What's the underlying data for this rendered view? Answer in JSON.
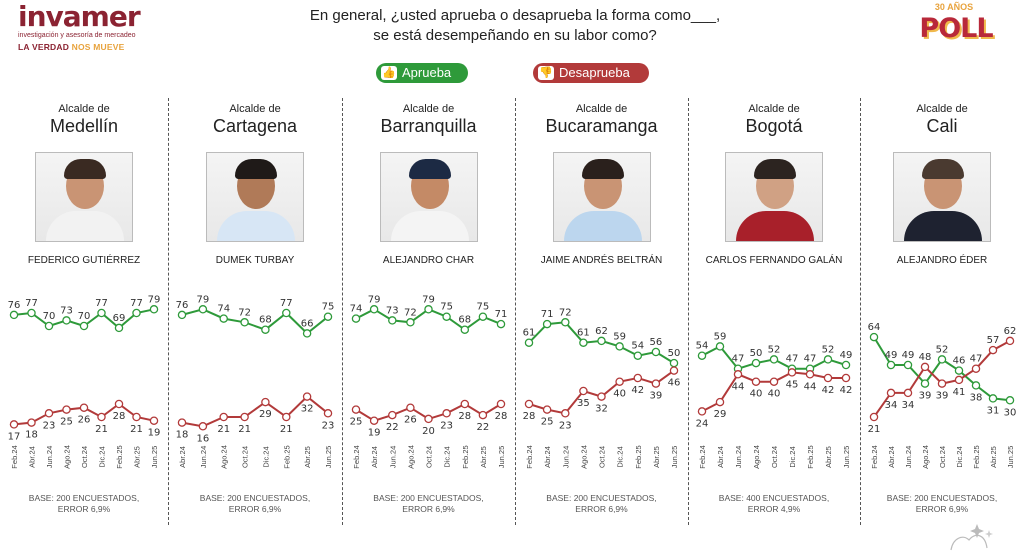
{
  "header": {
    "brand_name": "invamer",
    "brand_sub": "investigación y asesoría de mercadeo",
    "slogan_main": "LA VERDAD ",
    "slogan_accent": "NOS MUEVE",
    "question_line1": "En general, ¿usted aprueba o desaprueba la forma como___,",
    "question_line2": "se está desempeñando en su labor como?",
    "poll_anniversary": "30 AÑOS",
    "poll_word": "POLL"
  },
  "legend": {
    "approve": "Aprueba",
    "disapprove": "Desaprueba",
    "approve_color": "#2e9a3a",
    "disapprove_color": "#b23a3a"
  },
  "panels": [
    {
      "role": "Alcalde de",
      "city": "Medellín",
      "person": "FEDERICO GUTIÉRREZ",
      "base1": "BASE: 200 ENCUESTADOS,",
      "base2": "ERROR 6,9%"
    },
    {
      "role": "Alcalde de",
      "city": "Cartagena",
      "person": "DUMEK TURBAY",
      "base1": "BASE: 200 ENCUESTADOS,",
      "base2": "ERROR 6,9%"
    },
    {
      "role": "Alcalde de",
      "city": "Barranquilla",
      "person": "ALEJANDRO CHAR",
      "base1": "BASE: 200 ENCUESTADOS,",
      "base2": "ERROR 6,9%"
    },
    {
      "role": "Alcalde de",
      "city": "Bucaramanga",
      "person": "JAIME ANDRÉS BELTRÁN",
      "base1": "BASE: 200 ENCUESTADOS,",
      "base2": "ERROR 6,9%"
    },
    {
      "role": "Alcalde de",
      "city": "Bogotá",
      "person": "CARLOS FERNANDO GALÁN",
      "base1": "BASE: 400 ENCUESTADOS,",
      "base2": "ERROR 4,9%"
    },
    {
      "role": "Alcalde de",
      "city": "Cali",
      "person": "ALEJANDRO ÉDER",
      "base1": "BASE: 200 ENCUESTADOS,",
      "base2": "ERROR 6,9%"
    }
  ],
  "chart_data": [
    {
      "type": "line",
      "city": "Medellín",
      "x": [
        "Feb.24",
        "Abr.24",
        "Jun.24",
        "Ago.24",
        "Oct.24",
        "Dic.24",
        "Feb.25",
        "Abr.25",
        "Jun.25"
      ],
      "series": [
        {
          "name": "Aprueba",
          "values": [
            76,
            77,
            70,
            73,
            70,
            77,
            69,
            77,
            79
          ]
        },
        {
          "name": "Desaprueba",
          "values": [
            17,
            18,
            23,
            25,
            26,
            21,
            28,
            21,
            19
          ]
        }
      ]
    },
    {
      "type": "line",
      "city": "Cartagena",
      "x": [
        "Abr.24",
        "Jun.24",
        "Ago.24",
        "Oct.24",
        "Dic.24",
        "Feb.25",
        "Abr.25",
        "Jun.25"
      ],
      "series": [
        {
          "name": "Aprueba",
          "values": [
            76,
            79,
            74,
            72,
            68,
            77,
            66,
            75
          ]
        },
        {
          "name": "Desaprueba",
          "values": [
            18,
            16,
            21,
            21,
            29,
            21,
            32,
            23
          ]
        }
      ]
    },
    {
      "type": "line",
      "city": "Barranquilla",
      "x": [
        "Feb.24",
        "Abr.24",
        "Jun.24",
        "Ago.24",
        "Oct.24",
        "Dic.24",
        "Feb.25",
        "Abr.25",
        "Jun.25"
      ],
      "series": [
        {
          "name": "Aprueba",
          "values": [
            74,
            79,
            73,
            72,
            79,
            75,
            68,
            75,
            71
          ]
        },
        {
          "name": "Desaprueba",
          "values": [
            25,
            19,
            22,
            26,
            20,
            23,
            28,
            22,
            28
          ]
        }
      ]
    },
    {
      "type": "line",
      "city": "Bucaramanga",
      "x": [
        "Feb.24",
        "Abr.24",
        "Jun.24",
        "Ago.24",
        "Oct.24",
        "Dic.24",
        "Feb.25",
        "Abr.25",
        "Jun.25"
      ],
      "series": [
        {
          "name": "Aprueba",
          "values": [
            61,
            71,
            72,
            61,
            62,
            59,
            54,
            56,
            50
          ]
        },
        {
          "name": "Desaprueba",
          "values": [
            28,
            25,
            23,
            35,
            32,
            40,
            42,
            39,
            46
          ]
        }
      ]
    },
    {
      "type": "line",
      "city": "Bogotá",
      "x": [
        "Feb.24",
        "Abr.24",
        "Jun.24",
        "Ago.24",
        "Oct.24",
        "Dic.24",
        "Feb.25",
        "Abr.25",
        "Jun.25"
      ],
      "series": [
        {
          "name": "Aprueba",
          "values": [
            54,
            59,
            47,
            50,
            52,
            47,
            47,
            52,
            49
          ]
        },
        {
          "name": "Desaprueba",
          "values": [
            24,
            29,
            44,
            40,
            40,
            45,
            44,
            42,
            42
          ]
        }
      ]
    },
    {
      "type": "line",
      "city": "Cali",
      "x": [
        "Feb.24",
        "Abr.24",
        "Jun.24",
        "Ago.24",
        "Oct.24",
        "Dic.24",
        "Feb.25",
        "Abr.25",
        "Jun.25"
      ],
      "series": [
        {
          "name": "Aprueba",
          "values": [
            64,
            49,
            49,
            39,
            52,
            46,
            38,
            31,
            30
          ]
        },
        {
          "name": "Desaprueba",
          "values": [
            21,
            34,
            34,
            48,
            39,
            41,
            47,
            57,
            62
          ]
        }
      ]
    }
  ]
}
